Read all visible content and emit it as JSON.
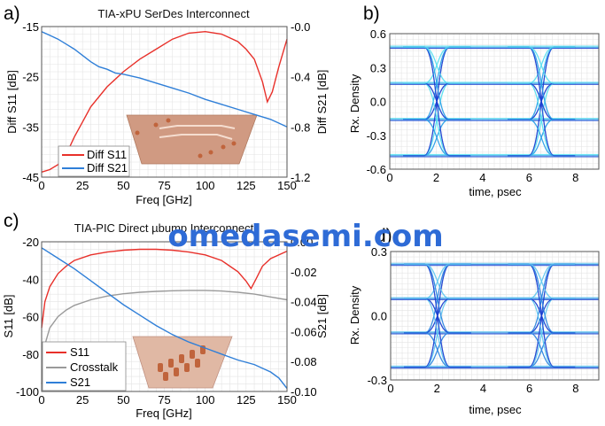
{
  "watermark": "omedasemi.com",
  "chart_data": [
    {
      "panel": "a)",
      "type": "line",
      "title": "TIA-xPU SerDes Interconnect",
      "xlabel": "Freq [GHz]",
      "ylabel": "Diff S11 [dB]",
      "y2label": "Diff S21 [dB]",
      "xlim": [
        0,
        150
      ],
      "ylim": [
        -45,
        -15
      ],
      "y2lim": [
        -1.2,
        0.0
      ],
      "xticks": [
        "0",
        "25",
        "50",
        "75",
        "100",
        "125",
        "150"
      ],
      "yticks": [
        "-15",
        "-25",
        "-35",
        "-45"
      ],
      "y2ticks": [
        "-0.0",
        "-0.4",
        "-0.8",
        "-1.2"
      ],
      "legend_position": "bottom-left",
      "grid": true,
      "series": [
        {
          "name": "Diff S11",
          "color": "#e8302a",
          "axis": "left",
          "x": [
            0,
            5,
            10,
            15,
            20,
            25,
            30,
            40,
            50,
            60,
            70,
            80,
            90,
            100,
            110,
            120,
            125,
            130,
            135,
            138,
            141,
            145,
            150
          ],
          "y": [
            -44,
            -43.5,
            -42.5,
            -40.5,
            -37,
            -34,
            -31,
            -27,
            -24,
            -21.5,
            -19.5,
            -17.5,
            -16.3,
            -16,
            -16.5,
            -18,
            -19.5,
            -21.5,
            -26,
            -30,
            -28,
            -23,
            -17.5
          ]
        },
        {
          "name": "Diff S21",
          "color": "#2f7fd8",
          "axis": "right",
          "x": [
            0,
            5,
            10,
            15,
            20,
            25,
            30,
            35,
            40,
            45,
            50,
            60,
            70,
            80,
            90,
            100,
            110,
            120,
            130,
            140,
            150
          ],
          "y": [
            -0.04,
            -0.07,
            -0.1,
            -0.14,
            -0.18,
            -0.23,
            -0.28,
            -0.32,
            -0.34,
            -0.37,
            -0.38,
            -0.41,
            -0.45,
            -0.49,
            -0.53,
            -0.58,
            -0.62,
            -0.66,
            -0.7,
            -0.74,
            -0.8
          ]
        }
      ]
    },
    {
      "panel": "b)",
      "type": "scatter",
      "xlabel": "time, psec",
      "ylabel": "Rx. Density",
      "xlim": [
        0,
        9
      ],
      "ylim": [
        -0.6,
        0.6
      ],
      "xticks": [
        "0",
        "2",
        "4",
        "6",
        "8"
      ],
      "yticks": [
        "0.6",
        "0.3",
        "0.0",
        "-0.3",
        "-0.6"
      ],
      "grid": true,
      "levels": [
        -0.48,
        -0.16,
        0.16,
        0.48
      ],
      "eye_period_ps": 4.5,
      "colors": [
        "#1a3fd0",
        "#2aa0e8",
        "#58e0f0"
      ]
    },
    {
      "panel": "c)",
      "type": "line",
      "title": "TIA-PIC Direct µbump Interconnect",
      "xlabel": "Freq [GHz]",
      "ylabel": "S11 [dB]",
      "y2label": "S21 [dB]",
      "xlim": [
        0,
        150
      ],
      "ylim": [
        -100,
        -20
      ],
      "y2lim": [
        -0.1,
        0.0
      ],
      "xticks": [
        "0",
        "25",
        "50",
        "75",
        "100",
        "125",
        "150"
      ],
      "yticks": [
        "-20",
        "-40",
        "-60",
        "-80",
        "-100"
      ],
      "y2ticks": [
        "0.00",
        "-0.02",
        "-0.04",
        "-0.06",
        "-0.08",
        "-0.10"
      ],
      "legend_position": "bottom-left",
      "grid": true,
      "series": [
        {
          "name": "S11",
          "color": "#e8302a",
          "axis": "left",
          "x": [
            0,
            2,
            5,
            10,
            15,
            20,
            30,
            40,
            50,
            60,
            70,
            80,
            90,
            100,
            110,
            115,
            120,
            125,
            128,
            131,
            135,
            140,
            150
          ],
          "y": [
            -66,
            -52,
            -44,
            -37,
            -33,
            -30,
            -27,
            -25.5,
            -24.5,
            -24,
            -24,
            -24.5,
            -25.5,
            -27,
            -30,
            -33,
            -36,
            -41,
            -45,
            -40,
            -33,
            -29,
            -25
          ]
        },
        {
          "name": "Crosstalk",
          "color": "#9a9a9a",
          "axis": "left",
          "x": [
            0,
            2,
            5,
            10,
            15,
            20,
            30,
            40,
            50,
            60,
            70,
            80,
            90,
            100,
            110,
            120,
            130,
            140,
            150
          ],
          "y": [
            -96,
            -75,
            -66,
            -60,
            -56.5,
            -54,
            -51,
            -49,
            -47.8,
            -47,
            -46.5,
            -46.2,
            -46,
            -46,
            -46.3,
            -47,
            -48,
            -49.5,
            -51
          ]
        },
        {
          "name": "S21",
          "color": "#2f7fd8",
          "axis": "right",
          "x": [
            0,
            10,
            20,
            30,
            40,
            50,
            60,
            70,
            80,
            90,
            100,
            110,
            120,
            130,
            140,
            145,
            150
          ],
          "y": [
            -0.004,
            -0.011,
            -0.018,
            -0.026,
            -0.034,
            -0.042,
            -0.049,
            -0.056,
            -0.062,
            -0.067,
            -0.071,
            -0.075,
            -0.079,
            -0.082,
            -0.087,
            -0.091,
            -0.098
          ]
        }
      ]
    },
    {
      "panel": "d)",
      "type": "scatter",
      "xlabel": "time, psec",
      "ylabel": "Rx. Density",
      "xlim": [
        0,
        9
      ],
      "ylim": [
        -0.3,
        0.3
      ],
      "xticks": [
        "0",
        "2",
        "4",
        "6",
        "8"
      ],
      "yticks": [
        "0.3",
        "0.0",
        "-0.3"
      ],
      "grid": true,
      "levels": [
        -0.24,
        -0.08,
        0.08,
        0.24
      ],
      "eye_period_ps": 4.5,
      "colors": [
        "#1a3fd0",
        "#2b86e0",
        "#62c8f0"
      ]
    }
  ]
}
